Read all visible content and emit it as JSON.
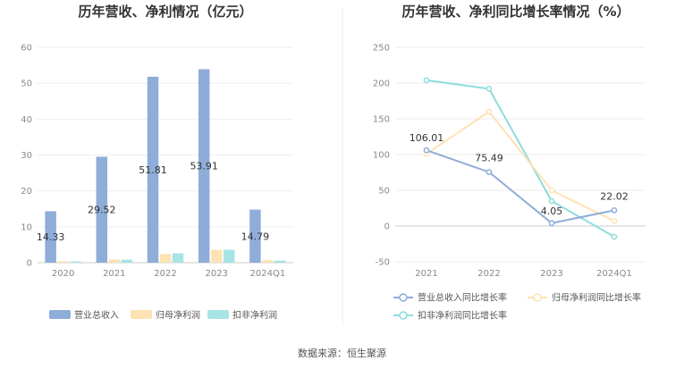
{
  "source": "数据来源：恒生聚源",
  "chart_data": [
    {
      "type": "bar",
      "title": "历年营收、净利情况（亿元）",
      "categories": [
        "2020",
        "2021",
        "2022",
        "2023",
        "2024Q1"
      ],
      "ylim": [
        0,
        60
      ],
      "yticks": [
        "0",
        "10",
        "20",
        "30",
        "40",
        "50",
        "60"
      ],
      "series": [
        {
          "name": "营业总收入",
          "color": "#8fadd9",
          "values": [
            14.33,
            29.52,
            51.81,
            53.91,
            14.79
          ],
          "labels": [
            "14.33",
            "29.52",
            "51.81",
            "53.91",
            "14.79"
          ]
        },
        {
          "name": "归母净利润",
          "color": "#fde2b4",
          "values": [
            0.4,
            0.9,
            2.4,
            3.6,
            0.7
          ]
        },
        {
          "name": "扣非净利润",
          "color": "#a8e4e4",
          "values": [
            0.35,
            0.85,
            2.6,
            3.6,
            0.6
          ]
        }
      ]
    },
    {
      "type": "line",
      "title": "历年营收、净利同比增长率情况（%）",
      "categories": [
        "2021",
        "2022",
        "2023",
        "2024Q1"
      ],
      "ylim": [
        -50,
        250
      ],
      "yticks": [
        "-50",
        "0",
        "50",
        "100",
        "150",
        "200",
        "250"
      ],
      "series": [
        {
          "name": "营业总收入同比增长率",
          "color": "#8fadd9",
          "values": [
            106.01,
            75.49,
            4.05,
            22.02
          ],
          "labels": [
            "106.01",
            "75.49",
            "4.05",
            "22.02"
          ]
        },
        {
          "name": "归母净利润同比增长率",
          "color": "#fde2b4",
          "values": [
            101,
            160,
            50,
            7
          ]
        },
        {
          "name": "扣非净利润同比增长率",
          "color": "#8edcdc",
          "values": [
            204,
            192,
            35,
            -15
          ]
        }
      ]
    }
  ]
}
